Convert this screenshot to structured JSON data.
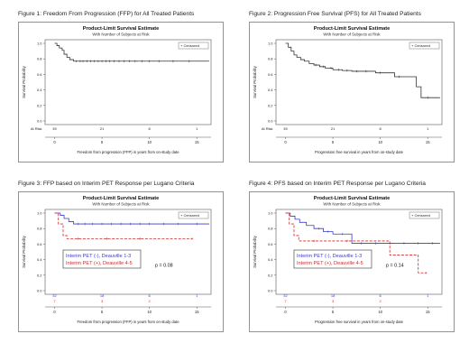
{
  "chart_data": [
    {
      "type": "line",
      "figure_caption": "Figure 1: Freedom From Progression (FFP) for All Treated Patients",
      "title": "Product-Limit Survival Estimate",
      "subtitle": "With Number of Subjects at Risk",
      "legend": "+ Censored",
      "xlabel": "Freedom from progression (FFP) in years from on-study date",
      "ylabel": "Survival Probability",
      "xlim": [
        -1,
        16.5
      ],
      "ylim": [
        0,
        1
      ],
      "xticks": [
        "0",
        "5",
        "10",
        "15"
      ],
      "yticks": [
        "0.0",
        "0.2",
        "0.4",
        "0.6",
        "0.8",
        "1.0"
      ],
      "at_risk_label": "At Risk",
      "at_risk": [
        {
          "t": 0,
          "n": "39"
        },
        {
          "t": 5,
          "n": "21"
        },
        {
          "t": 10,
          "n": "8"
        },
        {
          "t": 15,
          "n": "1"
        }
      ],
      "series": [
        {
          "color": "#333333",
          "dashed": false,
          "x": [
            0,
            0.25,
            0.5,
            0.8,
            1.0,
            1.3,
            1.6,
            2.0,
            16.3
          ],
          "y": [
            1.0,
            0.97,
            0.94,
            0.91,
            0.86,
            0.82,
            0.79,
            0.77,
            0.77
          ],
          "censored_x": [
            2.3,
            2.7,
            3.0,
            3.4,
            3.8,
            4.2,
            4.6,
            5.0,
            5.4,
            5.8,
            6.3,
            6.8,
            7.3,
            7.9,
            8.5,
            9.2,
            10.0,
            11.0,
            12.5,
            14.2
          ]
        }
      ]
    },
    {
      "type": "line",
      "figure_caption": "Figure 2: Progression Free Survival (PFS) for All Treated Patients",
      "title": "Product-Limit Survival Estimate",
      "subtitle": "With Number of Subjects at Risk",
      "legend": "+ Censored",
      "xlabel": "Progression free survival in years from on-study date",
      "ylabel": "Survival Probability",
      "xlim": [
        -1,
        16.5
      ],
      "ylim": [
        0,
        1
      ],
      "xticks": [
        "0",
        "5",
        "10",
        "15"
      ],
      "yticks": [
        "0.0",
        "0.2",
        "0.4",
        "0.6",
        "0.8",
        "1.0"
      ],
      "at_risk_label": "At Risk",
      "at_risk": [
        {
          "t": 0,
          "n": "39"
        },
        {
          "t": 5,
          "n": "21"
        },
        {
          "t": 10,
          "n": "8"
        },
        {
          "t": 15,
          "n": "1"
        }
      ],
      "series": [
        {
          "color": "#333333",
          "dashed": false,
          "x": [
            0,
            0.3,
            0.6,
            0.9,
            1.2,
            1.6,
            2.0,
            2.5,
            3.0,
            3.6,
            4.2,
            5.0,
            6.0,
            7.0,
            9.5,
            11.5,
            13.8,
            14.3,
            16.3
          ],
          "y": [
            1.0,
            0.95,
            0.9,
            0.85,
            0.82,
            0.79,
            0.77,
            0.74,
            0.72,
            0.7,
            0.68,
            0.66,
            0.65,
            0.64,
            0.62,
            0.57,
            0.44,
            0.3,
            0.3
          ],
          "censored_x": [
            3.2,
            4.0,
            4.8,
            5.6,
            6.5,
            7.5,
            8.5,
            10.0,
            12.0,
            15.0
          ]
        }
      ]
    },
    {
      "type": "line",
      "figure_caption": "Figure 3: FFP based on Interim PET Response per Lugano Criteria",
      "title": "Product-Limit Survival Estimate",
      "subtitle": "With Number of Subjects at Risk",
      "legend": "+ Censored",
      "xlabel": "Freedom from progression (FFP) in years from on-study date",
      "ylabel": "Survival Probability",
      "xlim": [
        -1,
        16.5
      ],
      "ylim": [
        0,
        1
      ],
      "xticks": [
        "0",
        "5",
        "10",
        "15"
      ],
      "yticks": [
        "0.0",
        "0.2",
        "0.4",
        "0.6",
        "0.8",
        "1.0"
      ],
      "annotation_lines": [
        "Interim PET (-), Deauville 1-3",
        "Interim PET (+), Deauville 4-5"
      ],
      "p_value": "p = 0.08",
      "at_risk": [
        {
          "color": "#3b3bcc",
          "values": [
            {
              "t": 0,
              "n": "32"
            },
            {
              "t": 5,
              "n": "18"
            },
            {
              "t": 10,
              "n": "6"
            },
            {
              "t": 15,
              "n": "1"
            }
          ]
        },
        {
          "color": "#cc2b2b",
          "values": [
            {
              "t": 0,
              "n": "7"
            },
            {
              "t": 5,
              "n": "3"
            },
            {
              "t": 10,
              "n": "2"
            },
            {
              "t": 15,
              "n": ""
            }
          ]
        }
      ],
      "series": [
        {
          "color": "#3b3bcc",
          "dashed": false,
          "x": [
            0,
            0.6,
            1.0,
            1.5,
            2.0,
            16.3
          ],
          "y": [
            1.0,
            0.97,
            0.93,
            0.89,
            0.86,
            0.86
          ],
          "censored_x": [
            2.5,
            3.2,
            4.0,
            5.0,
            6.0,
            7.0,
            8.0,
            9.0,
            10.0,
            11.5,
            13.0,
            15.0
          ]
        },
        {
          "color": "#cc2b2b",
          "dashed": true,
          "x": [
            0,
            0.4,
            0.9,
            1.3,
            14.5
          ],
          "y": [
            1.0,
            0.86,
            0.71,
            0.67,
            0.67
          ],
          "censored_x": [
            2.5,
            5.5,
            9.0,
            14.5
          ]
        }
      ]
    },
    {
      "type": "line",
      "figure_caption": "Figure 4: PFS based on Interim PET Response per Lugano Criteria",
      "title": "Product-Limit Survival Estimate",
      "subtitle": "With Number of Subjects at Risk",
      "legend": "+ Censored",
      "xlabel": "Progression free survival in years from on-study date",
      "ylabel": "Survival Probability",
      "xlim": [
        -1,
        16.5
      ],
      "ylim": [
        0,
        1
      ],
      "xticks": [
        "0",
        "5",
        "10",
        "15"
      ],
      "yticks": [
        "0.0",
        "0.2",
        "0.4",
        "0.6",
        "0.8",
        "1.0"
      ],
      "annotation_lines": [
        "Interim PET (-), Deauville 1-3",
        "Interim PET (+), Deauville 4-5"
      ],
      "p_value": "p = 0.14",
      "at_risk": [
        {
          "color": "#3b3bcc",
          "values": [
            {
              "t": 0,
              "n": "32"
            },
            {
              "t": 5,
              "n": "18"
            },
            {
              "t": 10,
              "n": "6"
            },
            {
              "t": 15,
              "n": "1"
            }
          ]
        },
        {
          "color": "#cc2b2b",
          "values": [
            {
              "t": 0,
              "n": "7"
            },
            {
              "t": 5,
              "n": "3"
            },
            {
              "t": 10,
              "n": "2"
            },
            {
              "t": 15,
              "n": ""
            }
          ]
        }
      ],
      "series": [
        {
          "color": "#3b3bcc",
          "dashed": false,
          "x": [
            0,
            0.5,
            1.0,
            1.5,
            2.2,
            3.0,
            4.0,
            5.0,
            7.0,
            16.3
          ],
          "y": [
            1.0,
            0.96,
            0.92,
            0.88,
            0.84,
            0.8,
            0.76,
            0.73,
            0.61,
            0.61
          ],
          "censored_x": [
            3.5,
            4.5,
            6.0,
            8.0,
            9.5,
            11.0,
            12.5,
            14.0,
            15.5
          ]
        },
        {
          "color": "#cc2b2b",
          "dashed": true,
          "x": [
            0,
            0.4,
            0.9,
            1.4,
            11.0,
            14.0,
            14.8
          ],
          "y": [
            1.0,
            0.86,
            0.71,
            0.64,
            0.46,
            0.23,
            0.23
          ],
          "censored_x": [
            3.0,
            6.5,
            14.8
          ]
        }
      ]
    }
  ]
}
